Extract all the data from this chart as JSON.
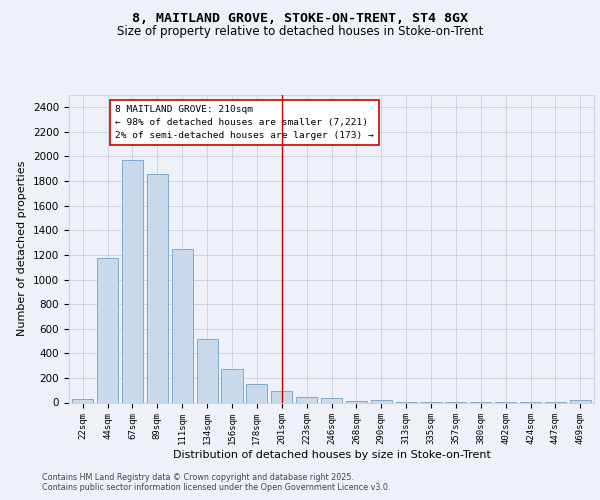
{
  "title1": "8, MAITLAND GROVE, STOKE-ON-TRENT, ST4 8GX",
  "title2": "Size of property relative to detached houses in Stoke-on-Trent",
  "xlabel": "Distribution of detached houses by size in Stoke-on-Trent",
  "ylabel": "Number of detached properties",
  "bar_values": [
    25,
    1175,
    1975,
    1860,
    1245,
    520,
    275,
    150,
    90,
    45,
    40,
    15,
    20,
    5,
    5,
    5,
    5,
    5,
    5,
    5,
    20
  ],
  "categories": [
    "22sqm",
    "44sqm",
    "67sqm",
    "89sqm",
    "111sqm",
    "134sqm",
    "156sqm",
    "178sqm",
    "201sqm",
    "223sqm",
    "246sqm",
    "268sqm",
    "290sqm",
    "313sqm",
    "335sqm",
    "357sqm",
    "380sqm",
    "402sqm",
    "424sqm",
    "447sqm",
    "469sqm"
  ],
  "bar_color": "#c9d9ec",
  "bar_edge_color": "#7faacb",
  "grid_color": "#ccd5e3",
  "bg_color": "#eef2f8",
  "ref_line_x": 8,
  "ref_line_color": "#cc0000",
  "annotation_text": "8 MAITLAND GROVE: 210sqm\n← 98% of detached houses are smaller (7,221)\n2% of semi-detached houses are larger (173) →",
  "annotation_box_color": "#ffffff",
  "annotation_border_color": "#cc0000",
  "footer_text": "Contains HM Land Registry data © Crown copyright and database right 2025.\nContains public sector information licensed under the Open Government Licence v3.0.",
  "ylim": [
    0,
    2500
  ],
  "yticks": [
    0,
    200,
    400,
    600,
    800,
    1000,
    1200,
    1400,
    1600,
    1800,
    2000,
    2200,
    2400
  ]
}
